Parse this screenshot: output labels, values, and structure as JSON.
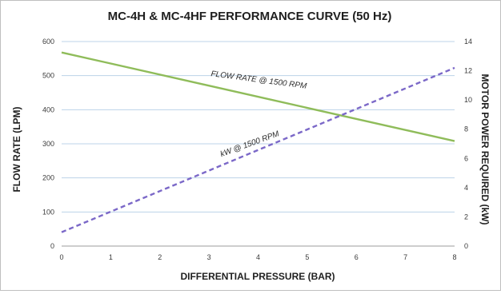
{
  "chart_data": {
    "type": "line",
    "title": "MC-4H & MC-4HF PERFORMANCE CURVE (50 Hz)",
    "xlabel": "DIFFERENTIAL PRESSURE (BAR)",
    "ylabel": "FLOW RATE (LPM)",
    "y2label": "MOTOR POWER REQUIRED (kW)",
    "xlim": [
      0,
      8
    ],
    "ylim": [
      0,
      600
    ],
    "y2lim": [
      0,
      14
    ],
    "x_ticks": [
      "0",
      "1",
      "2",
      "3",
      "4",
      "5",
      "6",
      "7",
      "8"
    ],
    "y_ticks": [
      "0",
      "100",
      "200",
      "300",
      "400",
      "500",
      "600"
    ],
    "y2_ticks": [
      "0",
      "2",
      "4",
      "6",
      "8",
      "10",
      "12",
      "14"
    ],
    "grid": true,
    "series": [
      {
        "name": "FLOW RATE @ 1500 RPM",
        "axis": "left",
        "color": "#8fbc5a",
        "style": "solid",
        "x": [
          0,
          8
        ],
        "values": [
          568,
          308
        ]
      },
      {
        "name": "kW @ 1500 RPM",
        "axis": "right",
        "color": "#7b68c8",
        "style": "dashed",
        "x": [
          0,
          8
        ],
        "values": [
          0.95,
          12.2
        ]
      }
    ]
  }
}
